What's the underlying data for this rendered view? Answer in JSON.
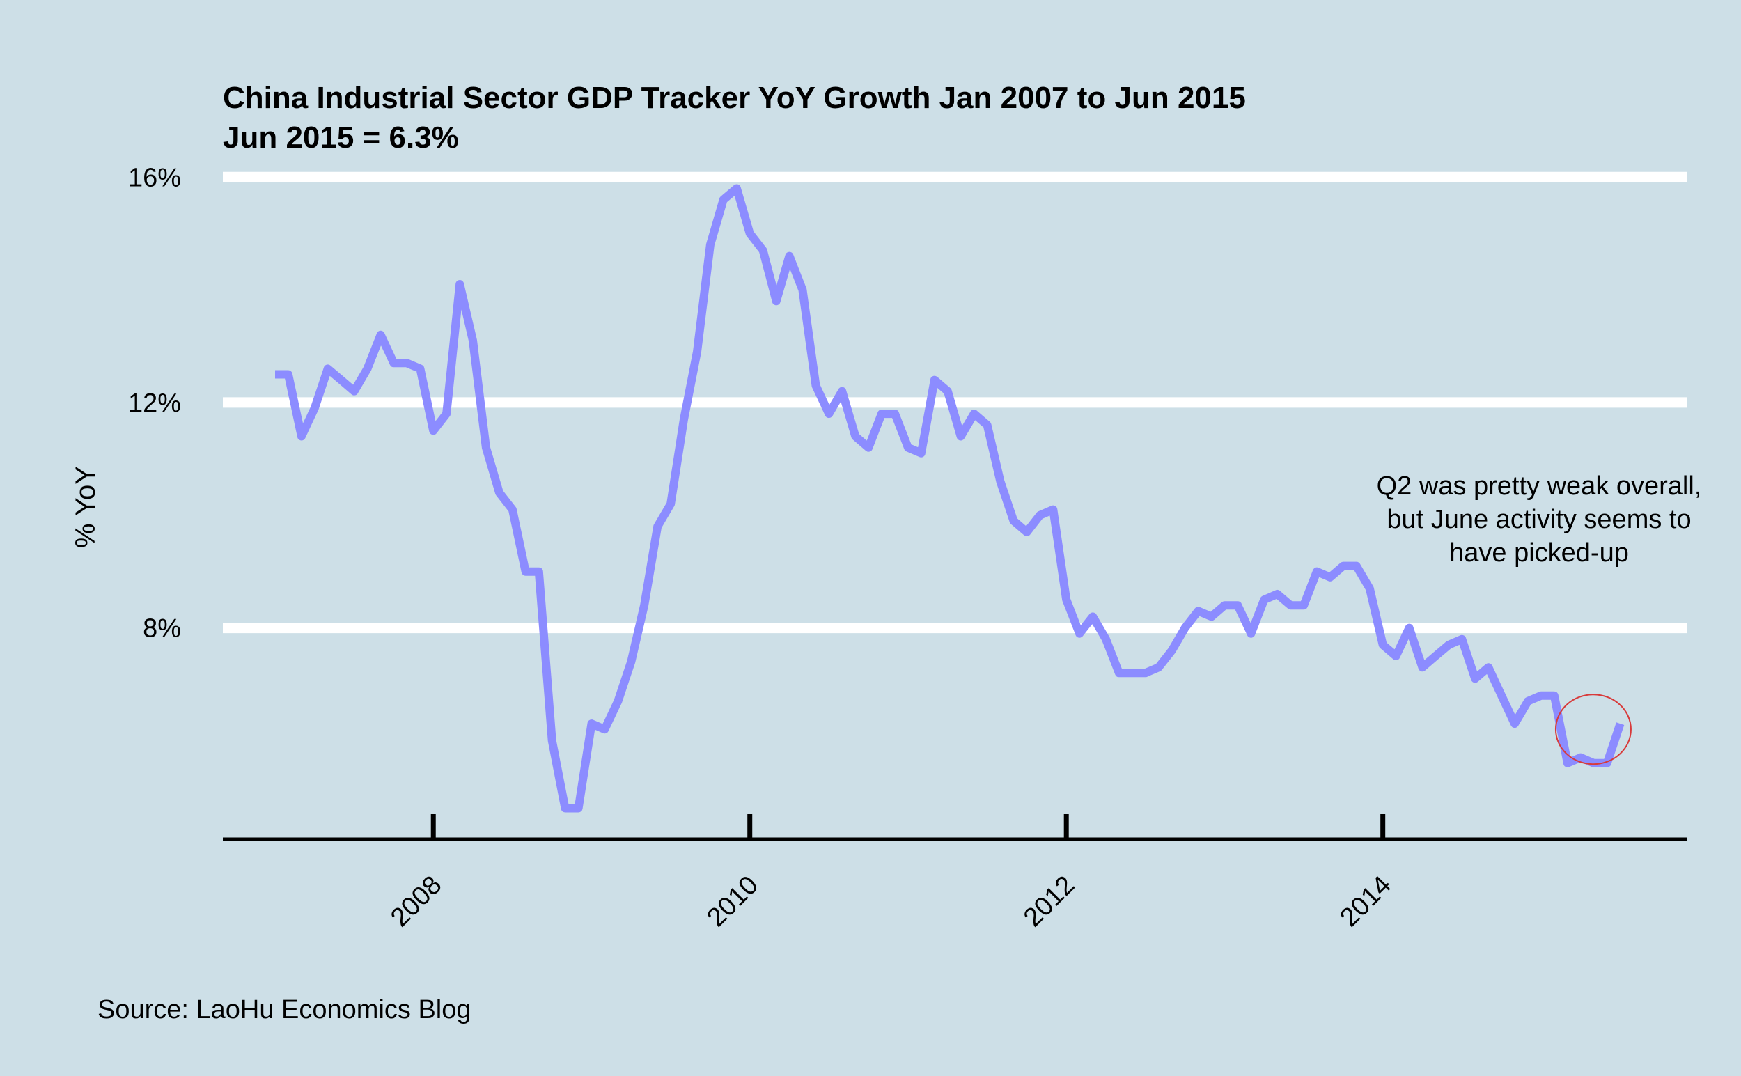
{
  "chart_data": {
    "type": "line",
    "title": "China Industrial Sector GDP Tracker YoY Growth Jan 2007 to Jun 2015",
    "subtitle": "Jun 2015 = 6.3%",
    "xlabel": "",
    "ylabel": "% YoY",
    "xlim": [
      2006.67,
      2015.92
    ],
    "ylim": [
      4.25,
      16.3
    ],
    "y_ticks": [
      8,
      12,
      16
    ],
    "y_tick_labels": [
      "8%",
      "12%",
      "16%"
    ],
    "x_ticks": [
      2008,
      2010,
      2012,
      2014
    ],
    "x_tick_labels": [
      "2008",
      "2010",
      "2012",
      "2014"
    ],
    "grid": true,
    "legend": "none",
    "series": [
      {
        "color": "#8c8cff",
        "x": [
          2007.0,
          2007.083,
          2007.167,
          2007.25,
          2007.333,
          2007.417,
          2007.5,
          2007.583,
          2007.667,
          2007.75,
          2007.833,
          2007.917,
          2008.0,
          2008.083,
          2008.167,
          2008.25,
          2008.333,
          2008.417,
          2008.5,
          2008.583,
          2008.667,
          2008.75,
          2008.833,
          2008.917,
          2009.0,
          2009.083,
          2009.167,
          2009.25,
          2009.333,
          2009.417,
          2009.5,
          2009.583,
          2009.667,
          2009.75,
          2009.833,
          2009.917,
          2010.0,
          2010.083,
          2010.167,
          2010.25,
          2010.333,
          2010.417,
          2010.5,
          2010.583,
          2010.667,
          2010.75,
          2010.833,
          2010.917,
          2011.0,
          2011.083,
          2011.167,
          2011.25,
          2011.333,
          2011.417,
          2011.5,
          2011.583,
          2011.667,
          2011.75,
          2011.833,
          2011.917,
          2012.0,
          2012.083,
          2012.167,
          2012.25,
          2012.333,
          2012.417,
          2012.5,
          2012.583,
          2012.667,
          2012.75,
          2012.833,
          2012.917,
          2013.0,
          2013.083,
          2013.167,
          2013.25,
          2013.333,
          2013.417,
          2013.5,
          2013.583,
          2013.667,
          2013.75,
          2013.833,
          2013.917,
          2014.0,
          2014.083,
          2014.167,
          2014.25,
          2014.333,
          2014.417,
          2014.5,
          2014.583,
          2014.667,
          2014.75,
          2014.833,
          2014.917,
          2015.0,
          2015.083,
          2015.167,
          2015.25,
          2015.333,
          2015.417,
          2015.5
        ],
        "values": [
          12.5,
          12.5,
          11.4,
          11.9,
          12.6,
          12.4,
          12.2,
          12.6,
          13.2,
          12.7,
          12.7,
          12.6,
          11.5,
          11.8,
          14.1,
          13.1,
          11.2,
          10.4,
          10.1,
          9.0,
          9.0,
          6.0,
          4.8,
          4.8,
          6.3,
          6.2,
          6.7,
          7.4,
          8.4,
          9.8,
          10.2,
          11.7,
          12.9,
          14.8,
          15.6,
          15.8,
          15.0,
          14.7,
          13.8,
          14.6,
          14.0,
          12.3,
          11.8,
          12.2,
          11.4,
          11.2,
          11.8,
          11.8,
          11.2,
          11.1,
          12.4,
          12.2,
          11.4,
          11.8,
          11.6,
          10.6,
          9.9,
          9.7,
          10.0,
          10.1,
          8.5,
          7.9,
          8.2,
          7.8,
          7.2,
          7.2,
          7.2,
          7.3,
          7.6,
          8.0,
          8.3,
          8.2,
          8.4,
          8.4,
          7.9,
          8.5,
          8.6,
          8.4,
          8.4,
          9.0,
          8.9,
          9.1,
          9.1,
          8.7,
          7.7,
          7.5,
          8.0,
          7.3,
          7.5,
          7.7,
          7.8,
          7.1,
          7.3,
          6.8,
          6.3,
          6.7,
          6.8,
          6.8,
          5.6,
          5.7,
          5.6,
          5.6,
          6.3
        ]
      }
    ],
    "annotation": {
      "lines": [
        "Q2 was pretty weak overall,",
        "but June activity seems to",
        "have picked-up"
      ],
      "highlight_x": 2015.33,
      "highlight_y": 6.2,
      "highlight_color": "#d83a3a"
    },
    "source": "Source: LaoHu Economics Blog"
  }
}
